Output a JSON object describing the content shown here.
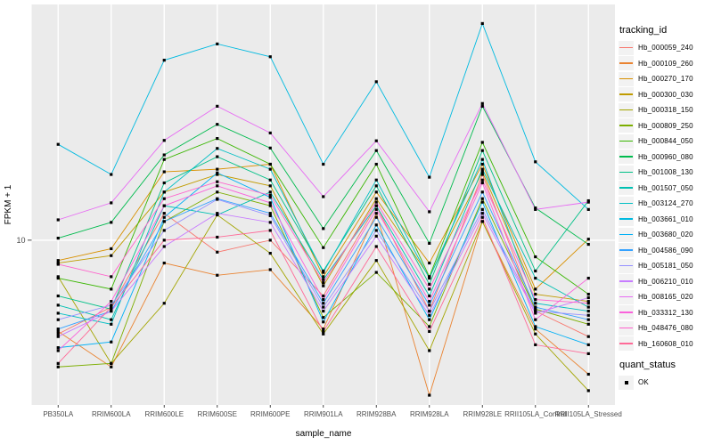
{
  "chart_data": {
    "type": "line",
    "title": "",
    "xlabel": "sample_name",
    "ylabel": "FPKM + 1",
    "y_scale": "log10",
    "y_domain": [
      2,
      100
    ],
    "y_ticks": [
      {
        "value": 10,
        "label": "10"
      }
    ],
    "grid": true,
    "panel_bg": "#EBEBEB",
    "grid_color": "#FFFFFF",
    "axis_text_color": "#4D4D4D",
    "tick_color": "#333333",
    "point": {
      "shape": "filled-square",
      "color": "#000000",
      "size": 3.2
    },
    "categories": [
      "PB350LA",
      "RRIM600LA",
      "RRIM600LE",
      "RRIM600SE",
      "RRIM600PE",
      "RRIM901LA",
      "RRIM928BA",
      "RRIM928LA",
      "RRIM928LE",
      "RRII105LA_Control",
      "RRII105LA_Stressed"
    ],
    "series": [
      {
        "name": "Hb_000059_240",
        "color": "#F8766D",
        "values": [
          4.0,
          5.2,
          13,
          8.9,
          10,
          5.8,
          14,
          5.0,
          19,
          5.0,
          3.9
        ]
      },
      {
        "name": "Hb_000109_260",
        "color": "#EA8331",
        "values": [
          4.1,
          2.9,
          8.0,
          7.1,
          7.5,
          4.2,
          13,
          2.2,
          12,
          4.2,
          2.7
        ]
      },
      {
        "name": "Hb_000270_170",
        "color": "#D89000",
        "values": [
          8.2,
          9.2,
          19.5,
          20,
          21,
          7.0,
          16,
          8.0,
          21,
          6.2,
          10.1
        ]
      },
      {
        "name": "Hb_000300_030",
        "color": "#C09B00",
        "values": [
          8.0,
          8.6,
          16,
          19,
          17,
          6.4,
          15,
          7.0,
          19.5,
          5.9,
          5.5
        ]
      },
      {
        "name": "Hb_000318_150",
        "color": "#A3A500",
        "values": [
          7.0,
          3.0,
          5.4,
          12.8,
          8.8,
          4.0,
          8.2,
          3.4,
          12,
          4.0,
          2.3
        ]
      },
      {
        "name": "Hb_000809_250",
        "color": "#7CAE00",
        "values": [
          2.9,
          3.0,
          12,
          16,
          14,
          4.7,
          7.3,
          4.3,
          15,
          5.1,
          4.4
        ]
      },
      {
        "name": "Hb_000844_050",
        "color": "#39B600",
        "values": [
          6.9,
          6.2,
          22,
          27,
          21,
          9.3,
          21,
          7.0,
          26,
          8.5,
          5.9
        ]
      },
      {
        "name": "Hb_000960_080",
        "color": "#00BB4E",
        "values": [
          10.2,
          11.9,
          23,
          31,
          24.6,
          11.2,
          24,
          9.7,
          37,
          13.7,
          9.6
        ]
      },
      {
        "name": "Hb_001008_130",
        "color": "#00C087",
        "values": [
          5.8,
          5.1,
          17.5,
          22.6,
          18,
          7.4,
          17,
          6.5,
          24,
          7.4,
          14.7
        ]
      },
      {
        "name": "Hb_001507_050",
        "color": "#00C0B2",
        "values": [
          5.3,
          4.6,
          14,
          12.8,
          16,
          6.8,
          14,
          5.8,
          20,
          6.9,
          5.2
        ]
      },
      {
        "name": "Hb_003124_270",
        "color": "#00BFC4",
        "values": [
          4.9,
          4.4,
          16,
          24.5,
          20,
          7.3,
          18,
          6.9,
          22,
          5.4,
          5.0
        ]
      },
      {
        "name": "Hb_003661_010",
        "color": "#00BAE0",
        "values": [
          25.5,
          19,
          58,
          68,
          60,
          21,
          47,
          18.5,
          83,
          21.5,
          13.5
        ]
      },
      {
        "name": "Hb_003680_020",
        "color": "#00B0F6",
        "values": [
          3.5,
          3.7,
          12.5,
          19.3,
          15.2,
          4.5,
          11.6,
          4.6,
          14.5,
          4.3,
          3.6
        ]
      },
      {
        "name": "Hb_004586_090",
        "color": "#35A2FF",
        "values": [
          4.2,
          5.0,
          12,
          15,
          13,
          5.4,
          12.5,
          5.3,
          16,
          5.2,
          4.6
        ]
      },
      {
        "name": "Hb_005181_050",
        "color": "#9590FF",
        "values": [
          4.6,
          5.3,
          11,
          14.9,
          12.7,
          5.2,
          11,
          5.0,
          13.5,
          5.0,
          4.8
        ]
      },
      {
        "name": "Hb_006210_010",
        "color": "#C77CFF",
        "values": [
          3.9,
          5.0,
          9.4,
          13,
          11.9,
          5.0,
          10.4,
          4.8,
          13,
          4.9,
          5.7
        ]
      },
      {
        "name": "Hb_008165_020",
        "color": "#E76BF3",
        "values": [
          12.2,
          14.4,
          26.5,
          37,
          28.5,
          15.3,
          26.4,
          13.2,
          38,
          13.5,
          14.5
        ]
      },
      {
        "name": "Hb_033312_130",
        "color": "#FA62DB",
        "values": [
          3.4,
          5.5,
          14,
          17,
          14.4,
          5.6,
          13.5,
          5.5,
          17.5,
          4.6,
          6.9
        ]
      },
      {
        "name": "Hb_048476_080",
        "color": "#FF61CC",
        "values": [
          7.9,
          7.0,
          15,
          17.7,
          15.5,
          6.6,
          14.5,
          6.2,
          18,
          5.6,
          5.4
        ]
      },
      {
        "name": "Hb_160608_010",
        "color": "#FF6A98",
        "values": [
          3.0,
          5.2,
          10,
          10.3,
          11,
          4.1,
          9.4,
          4.1,
          12.5,
          3.6,
          3.3
        ]
      }
    ],
    "legend_position": "right"
  },
  "legend": {
    "tracking": {
      "title": "tracking_id"
    },
    "quant": {
      "title": "quant_status",
      "items": [
        {
          "label": "OK"
        }
      ]
    }
  }
}
